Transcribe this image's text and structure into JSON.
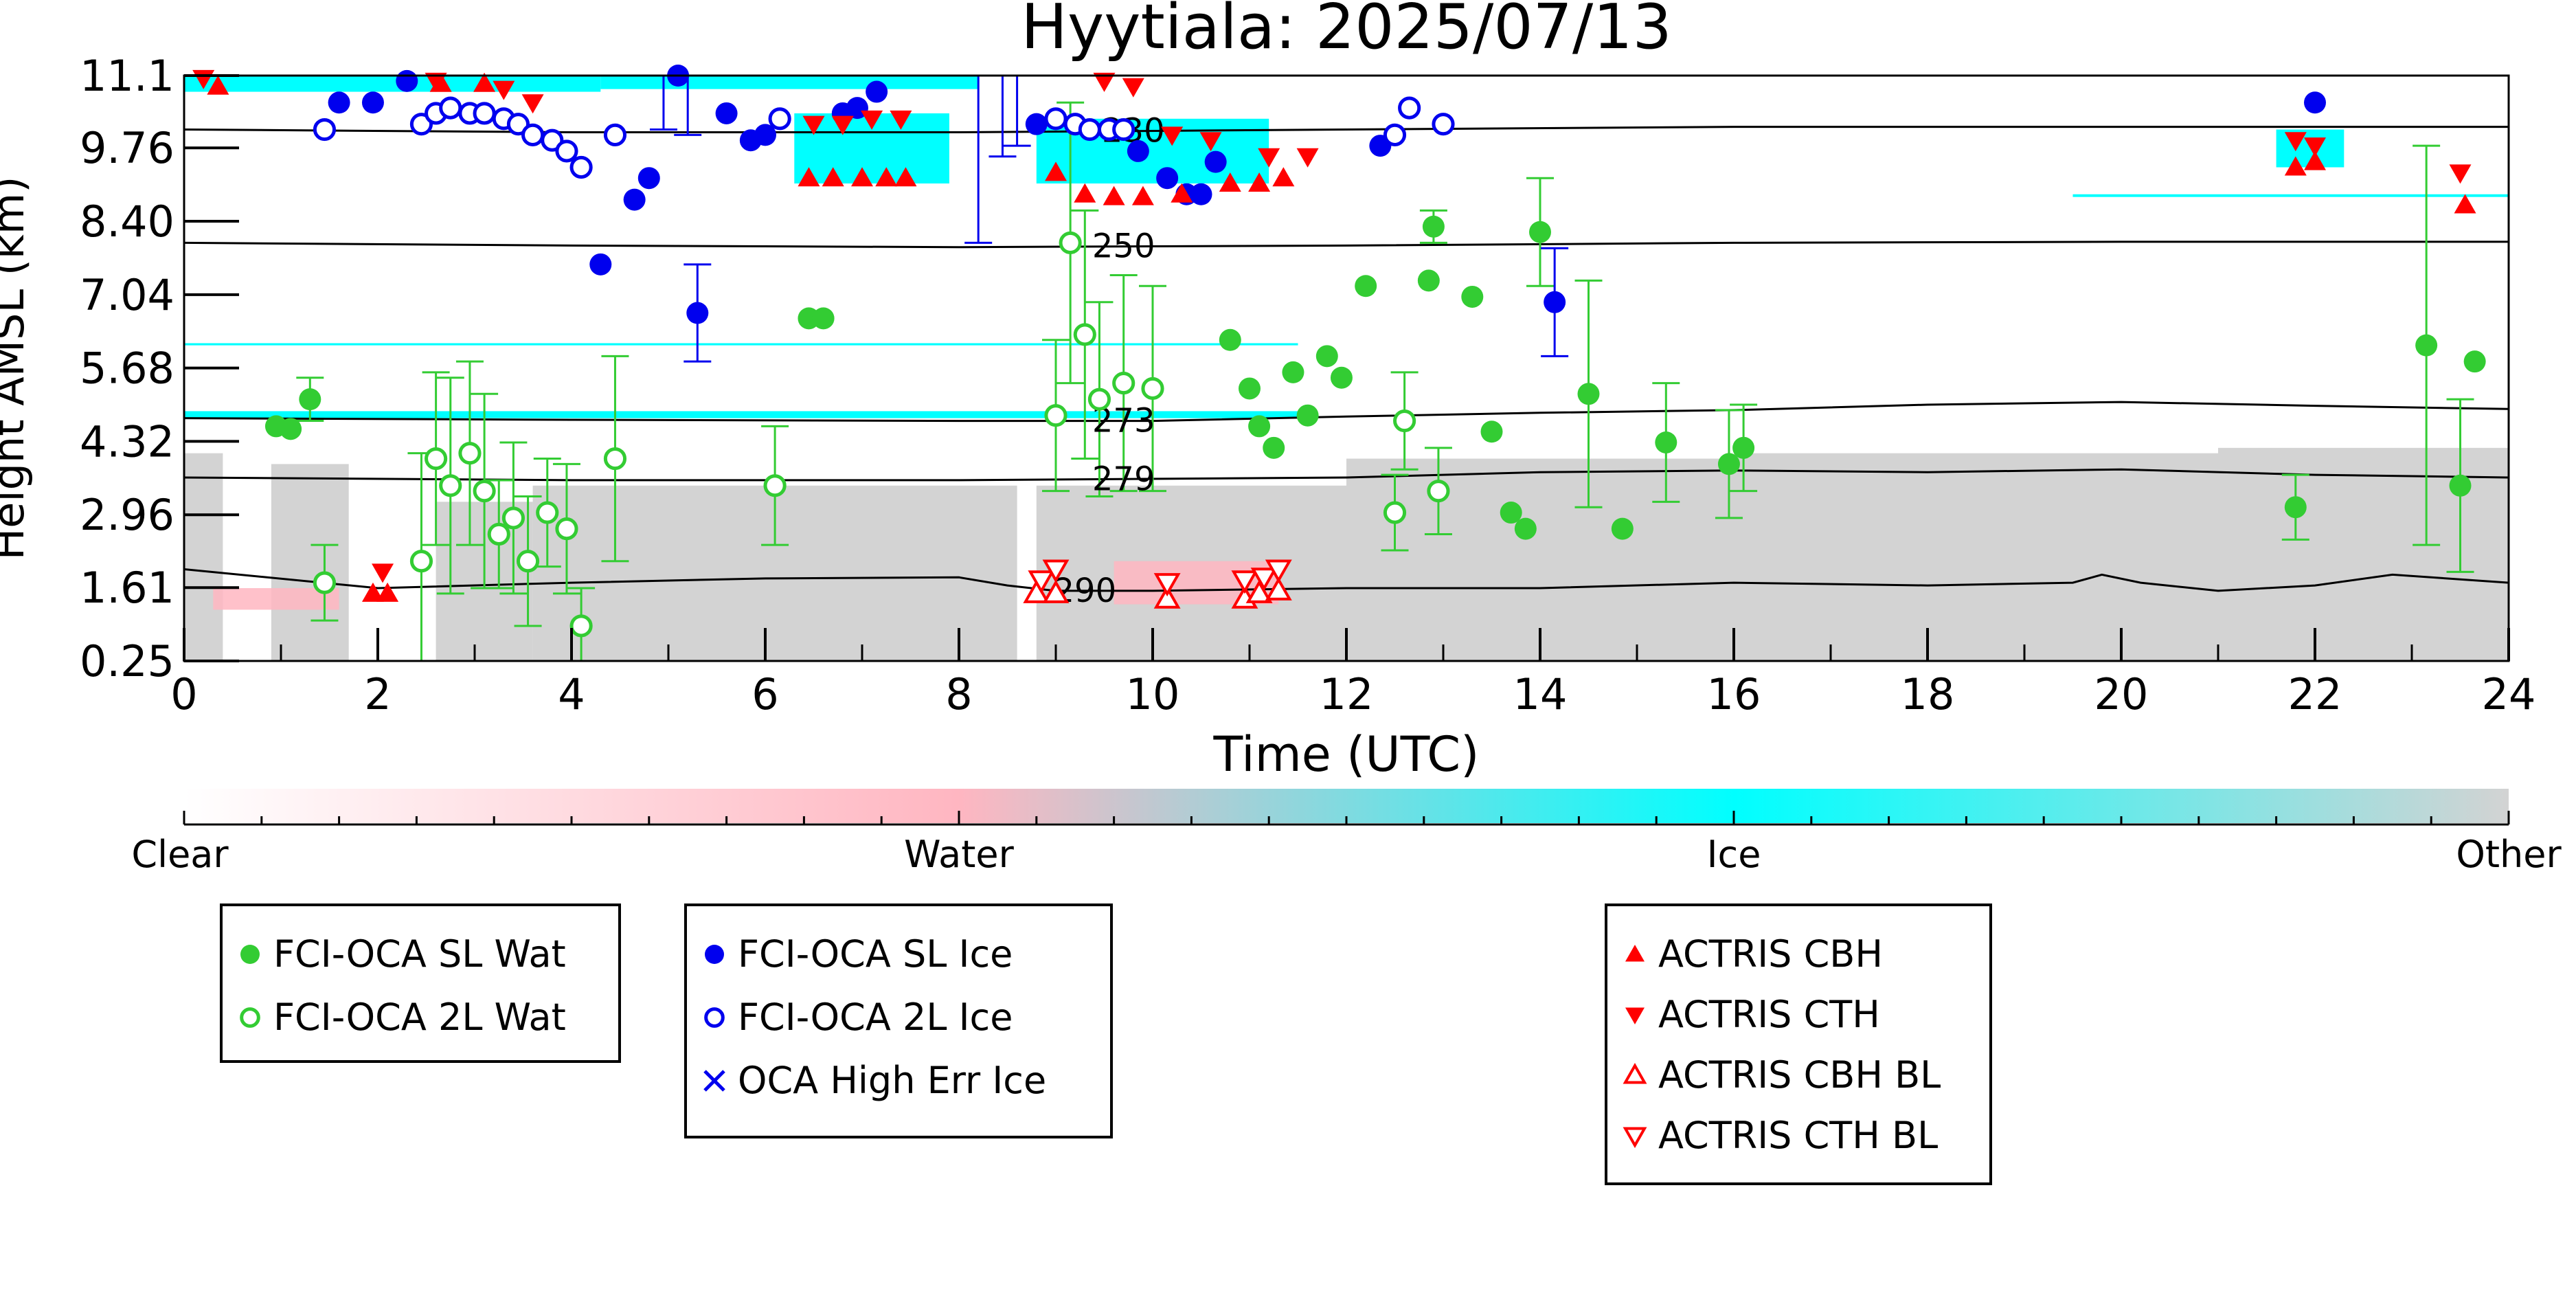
{
  "chart_data": {
    "type": "scatter",
    "title": "Hyytiala: 2025/07/13",
    "xlabel": "Time (UTC)",
    "ylabel": "Height AMSL (km)",
    "xlim": [
      0,
      24
    ],
    "ylim": [
      0.25,
      11.1
    ],
    "x_ticks": [
      "0",
      "2",
      "4",
      "6",
      "8",
      "10",
      "12",
      "14",
      "16",
      "18",
      "20",
      "22",
      "24"
    ],
    "y_ticks": [
      "0.25",
      "1.61",
      "2.96",
      "4.32",
      "5.68",
      "7.04",
      "8.40",
      "9.76",
      "11.1"
    ],
    "grid": false,
    "background": {
      "other_columns": [
        {
          "x0": 0.0,
          "x1": 0.4,
          "top": 4.1
        },
        {
          "x0": 0.9,
          "x1": 1.7,
          "top": 3.9
        },
        {
          "x0": 2.6,
          "x1": 3.6,
          "top": 3.2
        },
        {
          "x0": 3.6,
          "x1": 8.6,
          "top": 3.5
        },
        {
          "x0": 8.8,
          "x1": 12.0,
          "top": 3.5
        },
        {
          "x0": 12.0,
          "x1": 16.0,
          "top": 4.0
        },
        {
          "x0": 16.0,
          "x1": 21.0,
          "top": 4.1
        },
        {
          "x0": 21.0,
          "x1": 24.0,
          "top": 4.2
        }
      ],
      "ice_patches": [
        {
          "x0": 0.0,
          "x1": 4.3,
          "y0": 10.8,
          "y1": 11.1
        },
        {
          "x0": 4.3,
          "x1": 8.2,
          "y0": 10.85,
          "y1": 11.1
        },
        {
          "x0": 6.3,
          "x1": 7.9,
          "y0": 9.1,
          "y1": 10.4
        },
        {
          "x0": 8.8,
          "x1": 11.2,
          "y0": 9.1,
          "y1": 10.3
        },
        {
          "x0": 21.6,
          "x1": 22.3,
          "y0": 9.4,
          "y1": 10.1
        },
        {
          "x0": 19.5,
          "x1": 24.0,
          "y0": 8.85,
          "y1": 8.9
        },
        {
          "x0": 0.0,
          "x1": 11.5,
          "y0": 4.75,
          "y1": 4.88
        },
        {
          "x0": 0.0,
          "x1": 11.5,
          "y0": 6.1,
          "y1": 6.14
        }
      ],
      "water_patches": [
        {
          "x0": 0.3,
          "x1": 1.6,
          "y0": 1.2,
          "y1": 1.6
        },
        {
          "x0": 9.6,
          "x1": 11.3,
          "y0": 1.3,
          "y1": 2.1
        }
      ]
    },
    "contours": [
      {
        "label": "250",
        "label_x": 9.7,
        "y": [
          [
            0,
            8.0
          ],
          [
            4,
            7.95
          ],
          [
            8,
            7.92
          ],
          [
            12,
            7.95
          ],
          [
            16,
            8.0
          ],
          [
            20,
            8.02
          ],
          [
            24,
            8.02
          ]
        ]
      },
      {
        "label": "273",
        "label_x": 9.7,
        "y": [
          [
            0,
            4.75
          ],
          [
            4,
            4.72
          ],
          [
            8,
            4.7
          ],
          [
            10,
            4.7
          ],
          [
            12,
            4.78
          ],
          [
            14,
            4.85
          ],
          [
            16,
            4.9
          ],
          [
            18,
            5.0
          ],
          [
            20,
            5.05
          ],
          [
            22,
            4.98
          ],
          [
            24,
            4.92
          ]
        ]
      },
      {
        "label": "279",
        "label_x": 9.7,
        "y": [
          [
            0,
            3.65
          ],
          [
            4,
            3.6
          ],
          [
            8,
            3.6
          ],
          [
            12,
            3.65
          ],
          [
            14,
            3.75
          ],
          [
            16,
            3.78
          ],
          [
            18,
            3.75
          ],
          [
            20,
            3.8
          ],
          [
            22,
            3.7
          ],
          [
            24,
            3.65
          ]
        ]
      },
      {
        "label": "290",
        "label_x": 9.3,
        "y": [
          [
            0,
            1.95
          ],
          [
            2,
            1.6
          ],
          [
            4,
            1.7
          ],
          [
            6,
            1.78
          ],
          [
            8,
            1.8
          ],
          [
            8.5,
            1.65
          ],
          [
            9.0,
            1.55
          ],
          [
            10,
            1.55
          ],
          [
            12,
            1.6
          ],
          [
            14,
            1.6
          ],
          [
            16,
            1.7
          ],
          [
            18,
            1.65
          ],
          [
            19.5,
            1.7
          ],
          [
            19.8,
            1.85
          ],
          [
            20.2,
            1.7
          ],
          [
            21,
            1.55
          ],
          [
            22,
            1.65
          ],
          [
            22.8,
            1.85
          ],
          [
            24,
            1.7
          ]
        ]
      },
      {
        "label": "230",
        "label_x": 9.8,
        "y": [
          [
            0,
            10.1
          ],
          [
            4,
            10.05
          ],
          [
            8,
            10.05
          ],
          [
            12,
            10.1
          ],
          [
            16,
            10.15
          ],
          [
            20,
            10.15
          ],
          [
            24,
            10.15
          ]
        ]
      }
    ],
    "series": [
      {
        "name": "FCI-OCA SL Wat",
        "marker": "filled-circle",
        "color": "#33cc33",
        "points": [
          {
            "x": 0.95,
            "y": 4.6
          },
          {
            "x": 1.1,
            "y": 4.55
          },
          {
            "x": 1.3,
            "y": 5.1,
            "err": 0.4
          },
          {
            "x": 6.45,
            "y": 6.6
          },
          {
            "x": 6.6,
            "y": 6.6
          },
          {
            "x": 10.8,
            "y": 6.2
          },
          {
            "x": 11.0,
            "y": 5.3
          },
          {
            "x": 11.1,
            "y": 4.6
          },
          {
            "x": 11.25,
            "y": 4.2
          },
          {
            "x": 11.45,
            "y": 5.6
          },
          {
            "x": 11.6,
            "y": 4.8
          },
          {
            "x": 11.8,
            "y": 5.9
          },
          {
            "x": 11.95,
            "y": 5.5
          },
          {
            "x": 12.2,
            "y": 7.2
          },
          {
            "x": 12.9,
            "y": 8.3,
            "err": 0.3
          },
          {
            "x": 12.85,
            "y": 7.3
          },
          {
            "x": 13.3,
            "y": 7.0
          },
          {
            "x": 13.5,
            "y": 4.5
          },
          {
            "x": 13.7,
            "y": 3.0
          },
          {
            "x": 13.85,
            "y": 2.7
          },
          {
            "x": 14.0,
            "y": 8.2,
            "err": 1.0
          },
          {
            "x": 14.5,
            "y": 5.2,
            "err": 2.1
          },
          {
            "x": 14.85,
            "y": 2.7
          },
          {
            "x": 15.3,
            "y": 4.3,
            "err": 1.1
          },
          {
            "x": 15.95,
            "y": 3.9,
            "err": 1.0
          },
          {
            "x": 16.1,
            "y": 4.2,
            "err": 0.8
          },
          {
            "x": 21.8,
            "y": 3.1,
            "err": 0.6
          },
          {
            "x": 23.15,
            "y": 6.1,
            "err": 3.7
          },
          {
            "x": 23.5,
            "y": 3.5,
            "err": 1.6
          },
          {
            "x": 23.65,
            "y": 5.8
          }
        ]
      },
      {
        "name": "FCI-OCA 2L Wat",
        "marker": "open-circle",
        "color": "#33cc33",
        "points": [
          {
            "x": 1.45,
            "y": 1.7,
            "err": 0.7
          },
          {
            "x": 2.45,
            "y": 2.1,
            "err": 2.0
          },
          {
            "x": 2.6,
            "y": 4.0,
            "err": 1.6
          },
          {
            "x": 2.75,
            "y": 3.5,
            "err": 2.0
          },
          {
            "x": 2.95,
            "y": 4.1,
            "err": 1.7
          },
          {
            "x": 3.1,
            "y": 3.4,
            "err": 1.8
          },
          {
            "x": 3.25,
            "y": 2.6,
            "err": 1.0
          },
          {
            "x": 3.4,
            "y": 2.9,
            "err": 1.4
          },
          {
            "x": 3.55,
            "y": 2.1,
            "err": 1.2
          },
          {
            "x": 3.75,
            "y": 3.0,
            "err": 1.0
          },
          {
            "x": 3.95,
            "y": 2.7,
            "err": 1.2
          },
          {
            "x": 4.45,
            "y": 4.0,
            "err": 1.9
          },
          {
            "x": 4.1,
            "y": 0.9,
            "err": 0.7
          },
          {
            "x": 6.1,
            "y": 3.5,
            "err": 1.1
          },
          {
            "x": 9.0,
            "y": 4.8,
            "err": 1.4
          },
          {
            "x": 9.15,
            "y": 8.0,
            "err": 2.6
          },
          {
            "x": 9.3,
            "y": 6.3,
            "err": 2.3
          },
          {
            "x": 9.45,
            "y": 5.1,
            "err": 1.8
          },
          {
            "x": 9.7,
            "y": 5.4,
            "err": 2.0
          },
          {
            "x": 10.0,
            "y": 5.3,
            "err": 1.9
          },
          {
            "x": 12.5,
            "y": 3.0,
            "err": 0.7
          },
          {
            "x": 12.6,
            "y": 4.7,
            "err": 0.9
          },
          {
            "x": 12.95,
            "y": 3.4,
            "err": 0.8
          }
        ]
      },
      {
        "name": "FCI-OCA SL Ice",
        "marker": "filled-circle",
        "color": "#0000ee",
        "points": [
          {
            "x": 1.6,
            "y": 10.6
          },
          {
            "x": 1.95,
            "y": 10.6
          },
          {
            "x": 2.3,
            "y": 11.0
          },
          {
            "x": 4.3,
            "y": 7.6
          },
          {
            "x": 4.65,
            "y": 8.8
          },
          {
            "x": 4.8,
            "y": 9.2
          },
          {
            "x": 5.3,
            "y": 6.7,
            "err": 0.9
          },
          {
            "x": 5.1,
            "y": 11.1
          },
          {
            "x": 5.6,
            "y": 10.4
          },
          {
            "x": 5.85,
            "y": 9.9
          },
          {
            "x": 6.0,
            "y": 10.0
          },
          {
            "x": 6.8,
            "y": 10.4
          },
          {
            "x": 6.95,
            "y": 10.5
          },
          {
            "x": 7.15,
            "y": 10.8
          },
          {
            "x": 8.8,
            "y": 10.2
          },
          {
            "x": 9.85,
            "y": 9.7
          },
          {
            "x": 10.15,
            "y": 9.2
          },
          {
            "x": 10.35,
            "y": 8.9
          },
          {
            "x": 10.5,
            "y": 8.9
          },
          {
            "x": 10.65,
            "y": 9.5
          },
          {
            "x": 12.35,
            "y": 9.8
          },
          {
            "x": 14.15,
            "y": 6.9,
            "err": 1.0
          },
          {
            "x": 22.0,
            "y": 10.6
          }
        ]
      },
      {
        "name": "FCI-OCA 2L Ice",
        "marker": "open-circle",
        "color": "#0000ee",
        "points": [
          {
            "x": 1.45,
            "y": 10.1
          },
          {
            "x": 2.45,
            "y": 10.2
          },
          {
            "x": 2.6,
            "y": 10.4
          },
          {
            "x": 2.75,
            "y": 10.5
          },
          {
            "x": 2.95,
            "y": 10.4
          },
          {
            "x": 3.1,
            "y": 10.4
          },
          {
            "x": 3.3,
            "y": 10.3
          },
          {
            "x": 3.45,
            "y": 10.2
          },
          {
            "x": 3.6,
            "y": 10.0
          },
          {
            "x": 3.8,
            "y": 9.9
          },
          {
            "x": 3.95,
            "y": 9.7
          },
          {
            "x": 4.1,
            "y": 9.4
          },
          {
            "x": 4.45,
            "y": 10.0
          },
          {
            "x": 6.15,
            "y": 10.3
          },
          {
            "x": 9.0,
            "y": 10.3
          },
          {
            "x": 9.2,
            "y": 10.2
          },
          {
            "x": 9.35,
            "y": 10.1
          },
          {
            "x": 9.55,
            "y": 10.1
          },
          {
            "x": 9.7,
            "y": 10.1
          },
          {
            "x": 12.5,
            "y": 10.0
          },
          {
            "x": 12.65,
            "y": 10.5
          },
          {
            "x": 13.0,
            "y": 10.2
          }
        ]
      },
      {
        "name": "OCA High Err Ice",
        "marker": "x",
        "color": "#0000ee",
        "points": []
      },
      {
        "name": "ACTRIS CBH",
        "marker": "triangle-up",
        "color": "#ff0000",
        "points": [
          {
            "x": 0.35,
            "y": 10.9
          },
          {
            "x": 1.95,
            "y": 1.5
          },
          {
            "x": 2.1,
            "y": 1.5
          },
          {
            "x": 2.65,
            "y": 10.95
          },
          {
            "x": 3.1,
            "y": 10.95
          },
          {
            "x": 6.45,
            "y": 9.2
          },
          {
            "x": 6.7,
            "y": 9.2
          },
          {
            "x": 7.0,
            "y": 9.2
          },
          {
            "x": 7.25,
            "y": 9.2
          },
          {
            "x": 7.45,
            "y": 9.2
          },
          {
            "x": 9.0,
            "y": 9.3
          },
          {
            "x": 9.3,
            "y": 8.9
          },
          {
            "x": 9.6,
            "y": 8.85
          },
          {
            "x": 9.9,
            "y": 8.85
          },
          {
            "x": 10.3,
            "y": 8.9
          },
          {
            "x": 10.8,
            "y": 9.1
          },
          {
            "x": 11.1,
            "y": 9.1
          },
          {
            "x": 11.35,
            "y": 9.2
          },
          {
            "x": 21.8,
            "y": 9.4
          },
          {
            "x": 22.0,
            "y": 9.5
          },
          {
            "x": 23.55,
            "y": 8.7
          }
        ]
      },
      {
        "name": "ACTRIS CTH",
        "marker": "triangle-down",
        "color": "#ff0000",
        "points": [
          {
            "x": 0.2,
            "y": 11.05
          },
          {
            "x": 2.05,
            "y": 1.9
          },
          {
            "x": 2.6,
            "y": 11.0
          },
          {
            "x": 3.3,
            "y": 10.85
          },
          {
            "x": 3.6,
            "y": 10.6
          },
          {
            "x": 6.5,
            "y": 10.2
          },
          {
            "x": 6.8,
            "y": 10.2
          },
          {
            "x": 7.1,
            "y": 10.3
          },
          {
            "x": 7.4,
            "y": 10.3
          },
          {
            "x": 9.5,
            "y": 11.0
          },
          {
            "x": 9.8,
            "y": 10.9
          },
          {
            "x": 10.2,
            "y": 10.0
          },
          {
            "x": 10.6,
            "y": 9.9
          },
          {
            "x": 11.2,
            "y": 9.6
          },
          {
            "x": 11.6,
            "y": 9.6
          },
          {
            "x": 21.8,
            "y": 9.9
          },
          {
            "x": 22.0,
            "y": 9.8
          },
          {
            "x": 23.5,
            "y": 9.3
          }
        ]
      },
      {
        "name": "ACTRIS CBH BL",
        "marker": "open-triangle-up",
        "color": "#ff0000",
        "points": [
          {
            "x": 8.8,
            "y": 1.5
          },
          {
            "x": 9.0,
            "y": 1.5
          },
          {
            "x": 10.15,
            "y": 1.4
          },
          {
            "x": 10.95,
            "y": 1.4
          },
          {
            "x": 11.1,
            "y": 1.5
          },
          {
            "x": 11.3,
            "y": 1.55
          }
        ]
      },
      {
        "name": "ACTRIS CTH BL",
        "marker": "open-triangle-down",
        "color": "#ff0000",
        "points": [
          {
            "x": 8.85,
            "y": 1.75
          },
          {
            "x": 9.0,
            "y": 1.95
          },
          {
            "x": 10.15,
            "y": 1.7
          },
          {
            "x": 10.95,
            "y": 1.75
          },
          {
            "x": 11.15,
            "y": 1.8
          },
          {
            "x": 11.3,
            "y": 1.95
          }
        ]
      }
    ],
    "ice_error_bars": [
      {
        "x": 8.2,
        "y0": 8.0,
        "y1": 11.1
      },
      {
        "x": 8.45,
        "y0": 9.6,
        "y1": 11.1
      },
      {
        "x": 8.6,
        "y0": 9.8,
        "y1": 11.1
      },
      {
        "x": 4.95,
        "y0": 10.1,
        "y1": 11.1
      },
      {
        "x": 5.2,
        "y0": 10.0,
        "y1": 11.1
      }
    ],
    "colorbar": {
      "labels": [
        "Clear",
        "Water",
        "Ice",
        "Other"
      ],
      "colors": [
        "#ffffff",
        "#ffb6c1",
        "#00ffff",
        "#d3d3d3"
      ]
    },
    "legend": {
      "groups": [
        {
          "placement": "bottom-left",
          "series": [
            "FCI-OCA SL Wat",
            "FCI-OCA 2L Wat"
          ]
        },
        {
          "placement": "bottom-center-left",
          "series": [
            "FCI-OCA SL Ice",
            "FCI-OCA 2L Ice",
            "OCA High Err Ice"
          ]
        },
        {
          "placement": "bottom-right",
          "series": [
            "ACTRIS CBH",
            "ACTRIS CTH",
            "ACTRIS CBH BL",
            "ACTRIS CTH BL"
          ]
        }
      ]
    }
  }
}
